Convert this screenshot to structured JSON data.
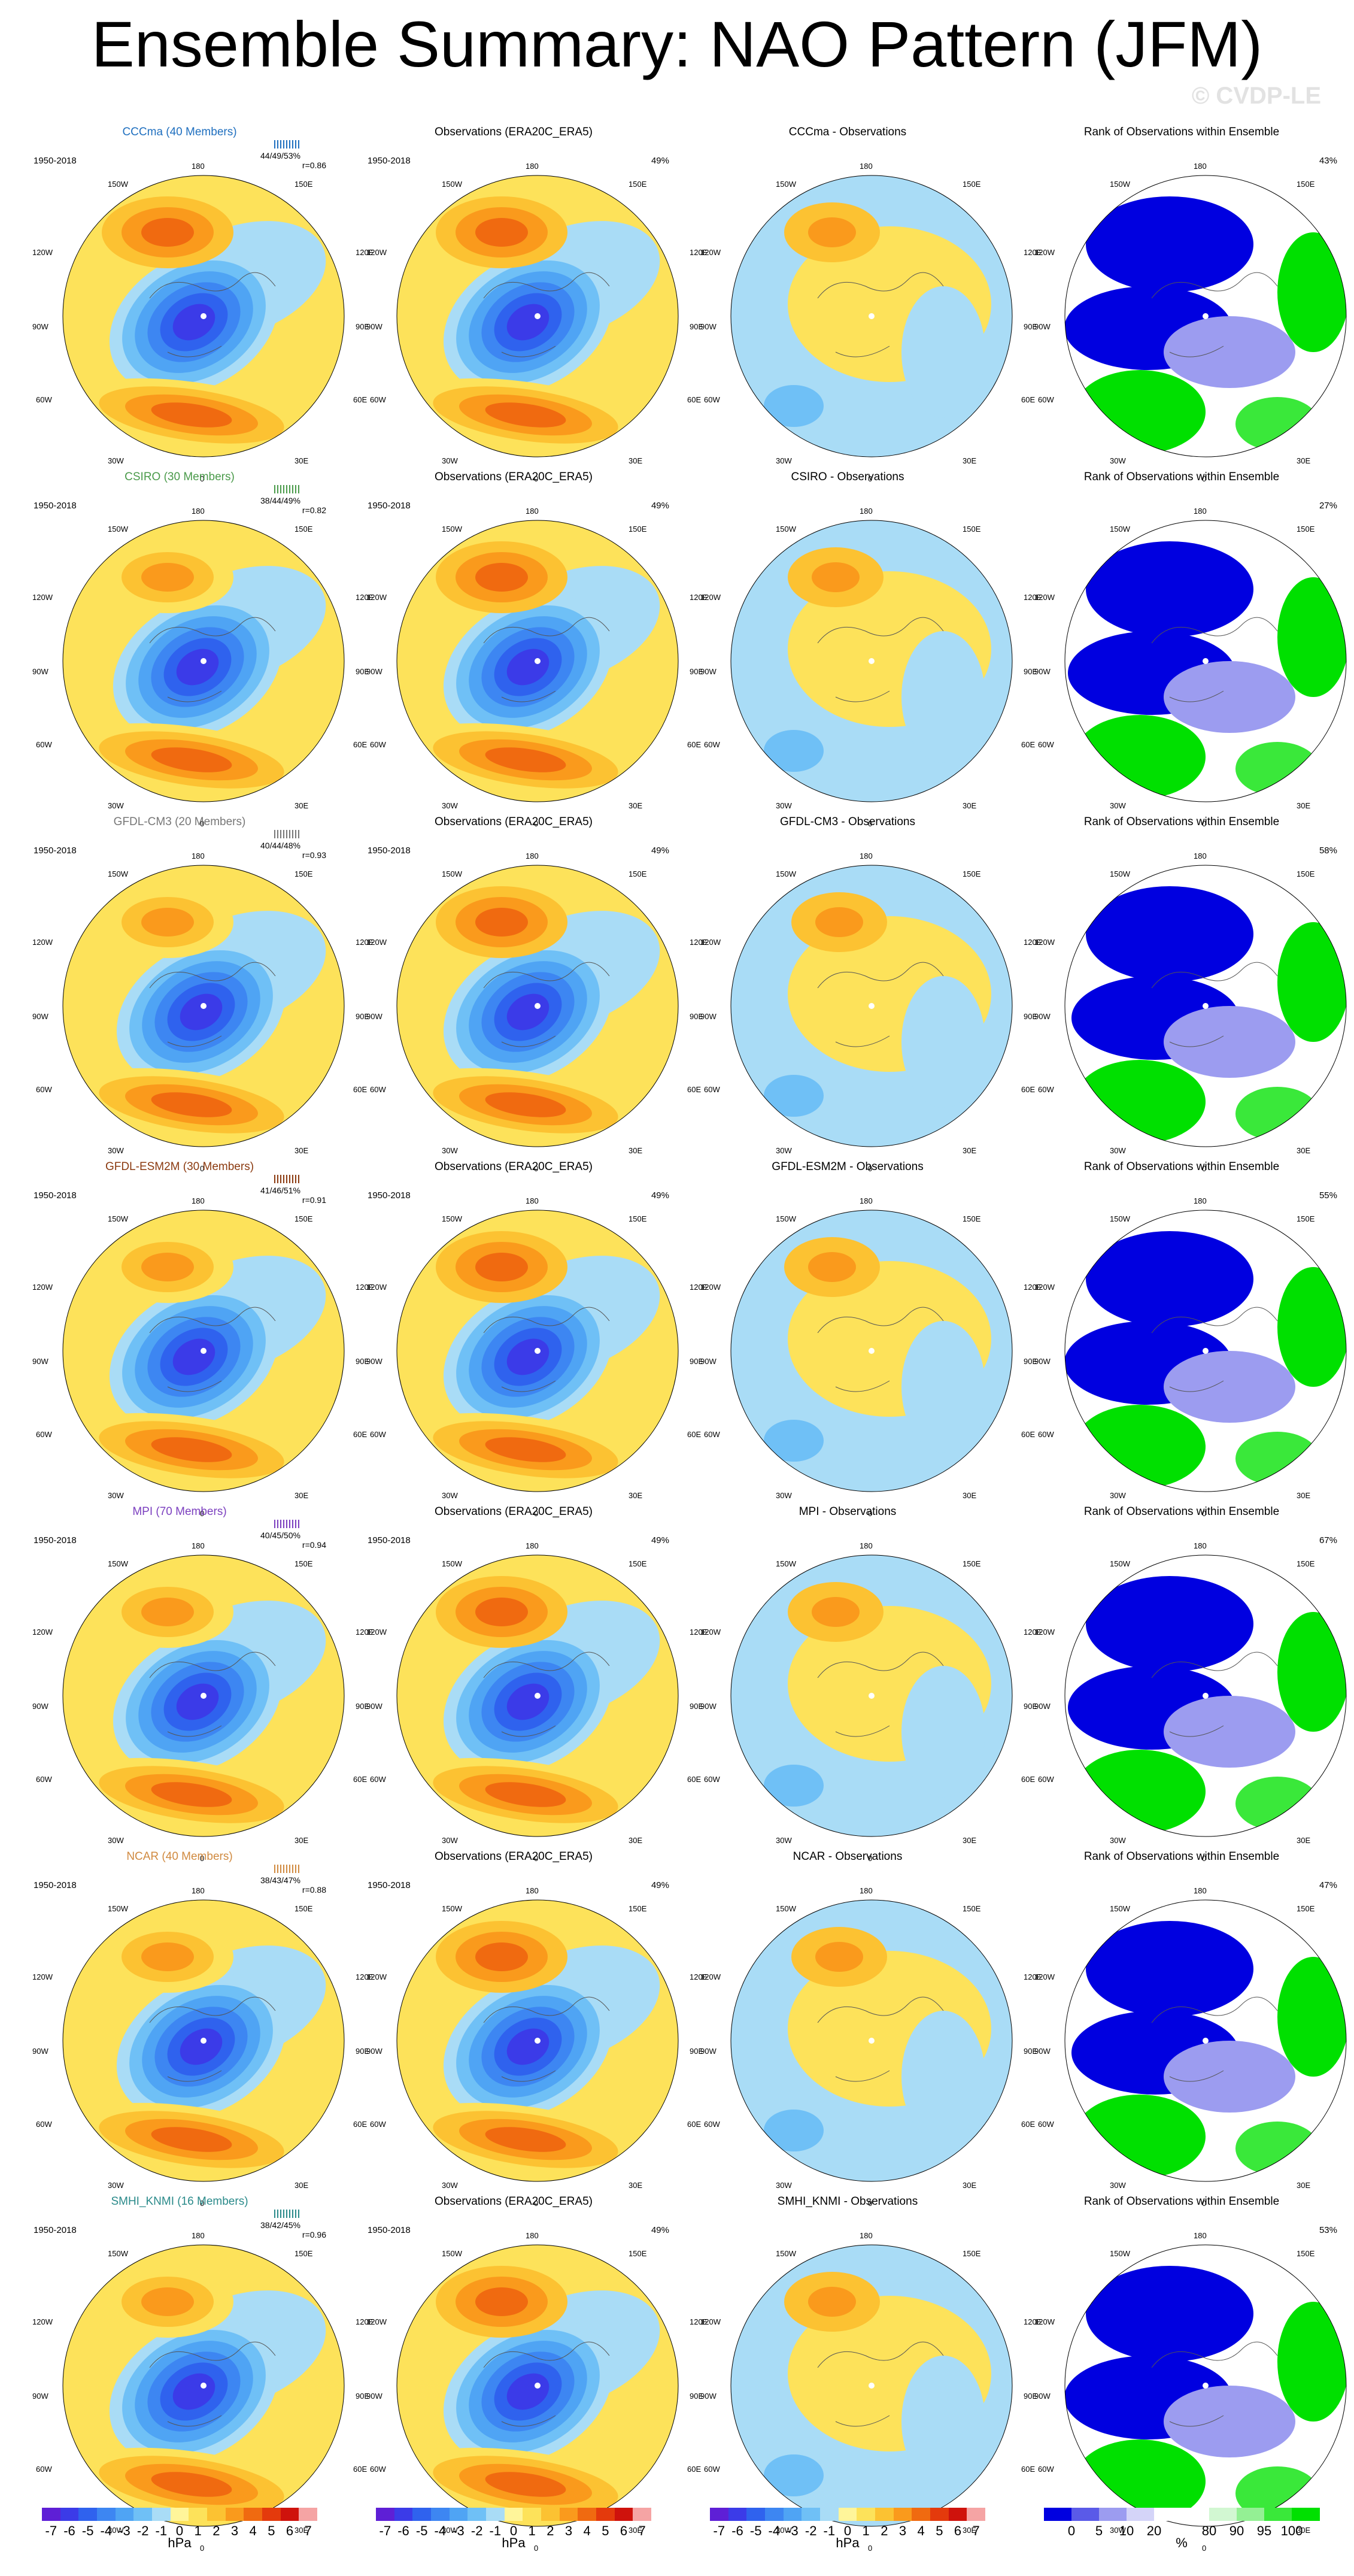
{
  "title": "Ensemble Summary: NAO Pattern (JFM)",
  "watermark": "© CVDP-LE",
  "obs_title": "Observations (ERA20C_ERA5)",
  "rank_title": "Rank of Observations within Ensemble",
  "period": "1950-2018",
  "obs_pct": "49%",
  "map_labels": {
    "n180": "180",
    "n150w": "150W",
    "n150e": "150E",
    "n120w": "120W",
    "n120e": "120E",
    "n90w": "90W",
    "n90e": "90E",
    "n60w": "60W",
    "n60e": "60E",
    "n30w": "30W",
    "n30e": "30E",
    "n0": "0"
  },
  "rows": [
    {
      "model": "CCCma (40 Members)",
      "color": "#1f6fbf",
      "stats1": "44/49/53%",
      "stats2": "r=0.86",
      "diff_title": "CCCma - Observations",
      "rank_pct": "43%",
      "variant": 0
    },
    {
      "model": "CSIRO (30 Members)",
      "color": "#4a9a4a",
      "stats1": "38/44/49%",
      "stats2": "r=0.82",
      "diff_title": "CSIRO - Observations",
      "rank_pct": "27%",
      "variant": 1
    },
    {
      "model": "GFDL-CM3 (20 Members)",
      "color": "#777777",
      "stats1": "40/44/48%",
      "stats2": "r=0.93",
      "diff_title": "GFDL-CM3 - Observations",
      "rank_pct": "58%",
      "variant": 2
    },
    {
      "model": "GFDL-ESM2M (30 Members)",
      "color": "#8b3a10",
      "stats1": "41/46/51%",
      "stats2": "r=0.91",
      "diff_title": "GFDL-ESM2M - Observations",
      "rank_pct": "55%",
      "variant": 3
    },
    {
      "model": "MPI (70 Members)",
      "color": "#7b3fbf",
      "stats1": "40/45/50%",
      "stats2": "r=0.94",
      "diff_title": "MPI - Observations",
      "rank_pct": "67%",
      "variant": 4
    },
    {
      "model": "NCAR (40 Members)",
      "color": "#d08a40",
      "stats1": "38/43/47%",
      "stats2": "r=0.88",
      "diff_title": "NCAR - Observations",
      "rank_pct": "47%",
      "variant": 5
    },
    {
      "model": "SMHI_KNMI (16 Members)",
      "color": "#2a8a8a",
      "stats1": "38/42/45%",
      "stats2": "r=0.96",
      "diff_title": "SMHI_KNMI - Observations",
      "rank_pct": "53%",
      "variant": 6
    }
  ],
  "hpa_colorbar": {
    "colors": [
      "#5e1fd6",
      "#3b3be8",
      "#2f62ee",
      "#3d86f2",
      "#4fa4f4",
      "#6fc0f6",
      "#a9dcf6",
      "#fff59a",
      "#fde25a",
      "#fcc232",
      "#fa9a1c",
      "#f06a10",
      "#e43a0c",
      "#cf120c",
      "#f5a4a4"
    ],
    "ticks": [
      "-7",
      "-6",
      "-5",
      "-4",
      "-3",
      "-2",
      "-1",
      "0",
      "1",
      "2",
      "3",
      "4",
      "5",
      "6",
      "7"
    ],
    "unit": "hPa"
  },
  "rank_colorbar": {
    "colors": [
      "#0000e0",
      "#5a5ae8",
      "#9c9cf0",
      "#d4d4f8",
      "#ffffff",
      "#ffffff",
      "#d2f7d2",
      "#94f094",
      "#3ae83a",
      "#00e000"
    ],
    "ticks": [
      "0",
      "5",
      "10",
      "20",
      "80",
      "90",
      "95",
      "100"
    ],
    "unit": "%"
  }
}
